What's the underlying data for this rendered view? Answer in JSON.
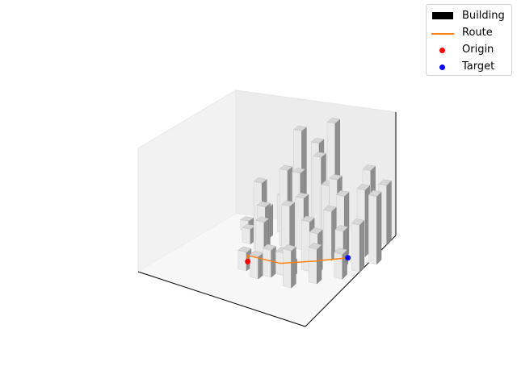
{
  "chart_data": {
    "type": "3d-bar",
    "legend": {
      "placement": "top-right",
      "entries": [
        {
          "label": "Building",
          "kind": "patch",
          "color": "#000000"
        },
        {
          "label": "Route",
          "kind": "line",
          "color": "#ff7f0e"
        },
        {
          "label": "Origin",
          "kind": "point",
          "color": "#ff0000"
        },
        {
          "label": "Target",
          "kind": "point",
          "color": "#0000ff"
        }
      ]
    },
    "grid": false,
    "axes_visible": false,
    "xlim": [
      0,
      20
    ],
    "ylim": [
      0,
      20
    ],
    "zlim": [
      0,
      100
    ],
    "building_footprint": 1,
    "buildings": [
      {
        "x": 3,
        "y": 16,
        "h": 8
      },
      {
        "x": 5,
        "y": 13,
        "h": 12
      },
      {
        "x": 6,
        "y": 15,
        "h": 25
      },
      {
        "x": 7,
        "y": 17,
        "h": 30
      },
      {
        "x": 9,
        "y": 17,
        "h": 85
      },
      {
        "x": 10,
        "y": 19,
        "h": 70
      },
      {
        "x": 12,
        "y": 19,
        "h": 88
      },
      {
        "x": 7,
        "y": 12,
        "h": 55
      },
      {
        "x": 8,
        "y": 11,
        "h": 40
      },
      {
        "x": 9,
        "y": 14,
        "h": 62
      },
      {
        "x": 10,
        "y": 15,
        "h": 58
      },
      {
        "x": 12,
        "y": 16,
        "h": 70
      },
      {
        "x": 11,
        "y": 14,
        "h": 42
      },
      {
        "x": 13,
        "y": 16,
        "h": 48
      },
      {
        "x": 14,
        "y": 16,
        "h": 54
      },
      {
        "x": 17,
        "y": 18,
        "h": 58
      },
      {
        "x": 19,
        "y": 18,
        "h": 48
      },
      {
        "x": 18,
        "y": 15,
        "h": 54
      },
      {
        "x": 20,
        "y": 14,
        "h": 55
      },
      {
        "x": 16,
        "y": 14,
        "h": 50
      },
      {
        "x": 15,
        "y": 13,
        "h": 40
      },
      {
        "x": 17,
        "y": 12,
        "h": 30
      },
      {
        "x": 15,
        "y": 10,
        "h": 32
      },
      {
        "x": 9,
        "y": 9,
        "h": 35
      },
      {
        "x": 11,
        "y": 11,
        "h": 45
      },
      {
        "x": 8,
        "y": 7,
        "h": 15
      },
      {
        "x": 10,
        "y": 6,
        "h": 18
      },
      {
        "x": 11,
        "y": 7,
        "h": 22
      },
      {
        "x": 12,
        "y": 8,
        "h": 18
      },
      {
        "x": 14,
        "y": 10,
        "h": 40
      },
      {
        "x": 13,
        "y": 8,
        "h": 12
      },
      {
        "x": 14,
        "y": 6,
        "h": 30
      },
      {
        "x": 16,
        "y": 8,
        "h": 28
      },
      {
        "x": 18,
        "y": 10,
        "h": 20
      },
      {
        "x": 19,
        "y": 12,
        "h": 38
      }
    ],
    "origin": {
      "x": 8,
      "y": 9,
      "z": 0
    },
    "target": {
      "x": 18,
      "y": 13,
      "z": 5
    },
    "route": {
      "x": [
        8,
        8,
        12,
        15,
        18,
        18
      ],
      "y": [
        9,
        9,
        9,
        11,
        13,
        13
      ],
      "z": [
        0,
        5,
        5,
        5,
        5,
        5
      ]
    }
  }
}
